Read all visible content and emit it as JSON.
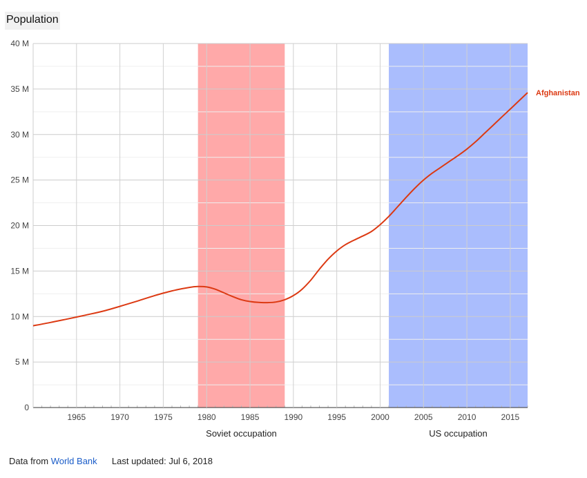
{
  "chart_data": {
    "type": "line",
    "title": "Population",
    "x_range": [
      1960,
      2017
    ],
    "ylim": [
      0,
      40000000
    ],
    "y_ticks": [
      0,
      5000000,
      10000000,
      15000000,
      20000000,
      25000000,
      30000000,
      35000000,
      40000000
    ],
    "y_tick_labels": [
      "0",
      "5 M",
      "10 M",
      "15 M",
      "20 M",
      "25 M",
      "30 M",
      "35 M",
      "40 M"
    ],
    "x_ticks": [
      1965,
      1970,
      1975,
      1980,
      1985,
      1990,
      1995,
      2000,
      2005,
      2010,
      2015
    ],
    "x_tick_labels": [
      "1965",
      "1970",
      "1975",
      "1980",
      "1985",
      "1990",
      "1995",
      "2000",
      "2005",
      "2010",
      "2015"
    ],
    "grid": true,
    "series": [
      {
        "name": "Afghanistan",
        "color": "#dc3912",
        "x": [
          1960,
          1962,
          1964,
          1966,
          1968,
          1970,
          1972,
          1974,
          1976,
          1978,
          1979,
          1980,
          1981,
          1982,
          1983,
          1984,
          1985,
          1986,
          1987,
          1988,
          1989,
          1990,
          1991,
          1992,
          1993,
          1994,
          1995,
          1996,
          1997,
          1998,
          1999,
          2000,
          2001,
          2002,
          2003,
          2004,
          2005,
          2006,
          2007,
          2008,
          2009,
          2010,
          2011,
          2012,
          2013,
          2014,
          2015,
          2016,
          2017
        ],
        "values": [
          8990000,
          9350000,
          9740000,
          10150000,
          10580000,
          11120000,
          11700000,
          12300000,
          12820000,
          13200000,
          13300000,
          13250000,
          13000000,
          12600000,
          12200000,
          11850000,
          11650000,
          11550000,
          11530000,
          11600000,
          11850000,
          12300000,
          13000000,
          14000000,
          15200000,
          16300000,
          17200000,
          17900000,
          18400000,
          18850000,
          19350000,
          20100000,
          21000000,
          22050000,
          23100000,
          24100000,
          25000000,
          25750000,
          26400000,
          27050000,
          27700000,
          28400000,
          29200000,
          30100000,
          31000000,
          31900000,
          32800000,
          33700000,
          34600000
        ]
      }
    ],
    "bands": [
      {
        "label": "Soviet occupation",
        "start": 1979,
        "end": 1989,
        "color": "#ffa9a9"
      },
      {
        "label": "US occupation",
        "start": 2001,
        "end": 2017,
        "color": "#aabdfd"
      }
    ]
  },
  "footer": {
    "source_prefix": "Data from",
    "source_link": "World Bank",
    "updated": "Last updated: Jul 6, 2018"
  }
}
